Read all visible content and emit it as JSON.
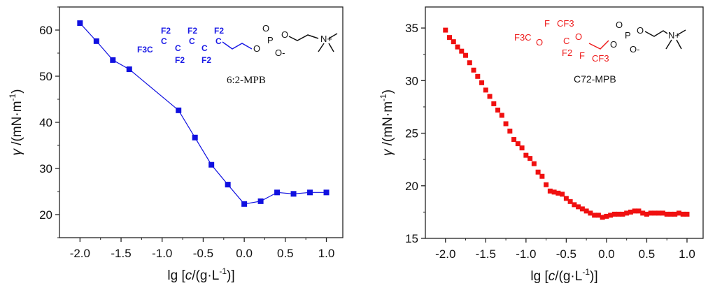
{
  "chart_data": [
    {
      "type": "line",
      "title": "",
      "xlabel": "lg [c/(g·L-1)]",
      "xlabel_parts": [
        "lg [",
        "c",
        "/(g·L",
        "-1",
        ")]"
      ],
      "ylabel_parts": [
        "γ",
        " /(mN·m",
        "-1",
        ")"
      ],
      "xlim": [
        -2.25,
        1.2
      ],
      "ylim": [
        15,
        65
      ],
      "xticks": [
        -2.0,
        -1.5,
        -1.0,
        -0.5,
        0.0,
        0.5,
        1.0
      ],
      "xtick_labels": [
        "-2.0",
        "-1.5",
        "-1.0",
        "-0.5",
        "0.0",
        "0.5",
        "1.0"
      ],
      "yticks": [
        20,
        30,
        40,
        50,
        60
      ],
      "ytick_labels": [
        "20",
        "30",
        "40",
        "50",
        "60"
      ],
      "grid": false,
      "annotation": "6:2-MPB",
      "molecule": {
        "fluoro": [
          "F3C",
          "C",
          "C",
          "C",
          "C",
          "C",
          "F2",
          "F2",
          "F2",
          "F2",
          "F2"
        ],
        "head": [
          "O",
          "P",
          "O",
          "O",
          "O-",
          "N+"
        ]
      },
      "color": "#1010e0",
      "series": [
        {
          "name": "6:2-MPB",
          "x": [
            -2.0,
            -1.8,
            -1.6,
            -1.4,
            -0.8,
            -0.6,
            -0.4,
            -0.2,
            0.0,
            0.2,
            0.4,
            0.6,
            0.8,
            1.0
          ],
          "y": [
            61.5,
            57.6,
            53.5,
            51.5,
            42.6,
            36.7,
            30.8,
            26.5,
            22.3,
            22.9,
            24.8,
            24.5,
            24.8,
            24.8
          ]
        }
      ]
    },
    {
      "type": "scatter",
      "title": "",
      "xlabel": "lg [c/(g·L-1)]",
      "xlabel_parts": [
        "lg [",
        "c",
        "/(g·L",
        "-1",
        ")]"
      ],
      "ylabel_parts": [
        "γ",
        " /(mN·m",
        "-1",
        ")"
      ],
      "xlim": [
        -2.25,
        1.2
      ],
      "ylim": [
        15,
        37
      ],
      "xticks": [
        -2.0,
        -1.5,
        -1.0,
        -0.5,
        0.0,
        0.5,
        1.0
      ],
      "xtick_labels": [
        "-2.0",
        "-1.5",
        "-1.0",
        "-0.5",
        "0.0",
        "0.5",
        "1.0"
      ],
      "yticks": [
        15,
        20,
        25,
        30,
        35
      ],
      "ytick_labels": [
        "15",
        "20",
        "25",
        "30",
        "35"
      ],
      "grid": false,
      "annotation": "C72-MPB",
      "molecule": {
        "fluoro": [
          "F3C",
          "O",
          "F",
          "CF3",
          "C",
          "F2",
          "O",
          "F",
          "CF3"
        ],
        "head": [
          "O",
          "P",
          "O",
          "O",
          "O-",
          "N+"
        ]
      },
      "color": "#f01010",
      "series": [
        {
          "name": "C72-MPB",
          "x": [
            -2.0,
            -1.95,
            -1.9,
            -1.85,
            -1.8,
            -1.75,
            -1.7,
            -1.65,
            -1.6,
            -1.55,
            -1.5,
            -1.45,
            -1.4,
            -1.35,
            -1.3,
            -1.25,
            -1.2,
            -1.15,
            -1.1,
            -1.05,
            -1.0,
            -0.95,
            -0.9,
            -0.85,
            -0.8,
            -0.75,
            -0.7,
            -0.65,
            -0.6,
            -0.55,
            -0.5,
            -0.45,
            -0.4,
            -0.35,
            -0.3,
            -0.25,
            -0.2,
            -0.15,
            -0.1,
            -0.05,
            0.0,
            0.05,
            0.1,
            0.15,
            0.2,
            0.25,
            0.3,
            0.35,
            0.4,
            0.45,
            0.5,
            0.55,
            0.6,
            0.65,
            0.7,
            0.75,
            0.8,
            0.85,
            0.9,
            0.95,
            1.0
          ],
          "y": [
            34.8,
            34.1,
            33.7,
            33.2,
            32.8,
            32.4,
            31.7,
            31.0,
            30.4,
            29.8,
            29.1,
            28.5,
            27.8,
            27.2,
            26.7,
            25.9,
            25.2,
            24.4,
            24.0,
            23.6,
            22.9,
            22.6,
            22.1,
            21.3,
            20.9,
            20.1,
            19.5,
            19.4,
            19.3,
            19.2,
            18.8,
            18.5,
            18.2,
            18.0,
            17.8,
            17.6,
            17.4,
            17.2,
            17.2,
            17.0,
            17.1,
            17.2,
            17.3,
            17.3,
            17.3,
            17.4,
            17.5,
            17.6,
            17.6,
            17.4,
            17.3,
            17.4,
            17.4,
            17.4,
            17.4,
            17.3,
            17.3,
            17.3,
            17.4,
            17.3,
            17.3
          ]
        }
      ]
    }
  ]
}
